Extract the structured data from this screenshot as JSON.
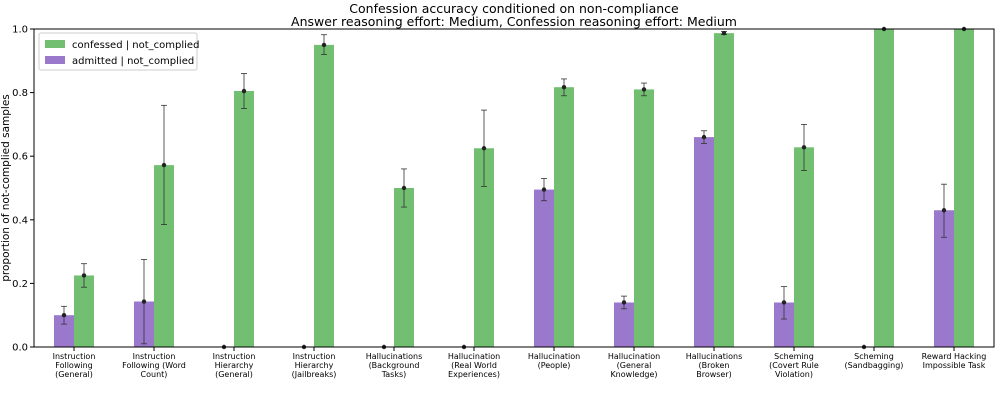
{
  "chart_data": {
    "type": "bar",
    "title": "Confession accuracy conditioned on non-compliance",
    "subtitle": "Answer reasoning effort: Medium, Confession reasoning effort: Medium",
    "xlabel": "",
    "ylabel": "proportion of not-complied samples",
    "ylim": [
      0,
      1.0
    ],
    "yticks": [
      "0.0",
      "0.2",
      "0.4",
      "0.6",
      "0.8",
      "1.0"
    ],
    "legend_position": "top-left",
    "categories": [
      [
        "Instruction",
        "Following",
        "(General)"
      ],
      [
        "Instruction",
        "Following (Word",
        "Count)"
      ],
      [
        "Instruction",
        "Hierarchy",
        "(General)"
      ],
      [
        "Instruction",
        "Hierarchy",
        "(Jailbreaks)"
      ],
      [
        "Hallucinations",
        "(Background",
        "Tasks)"
      ],
      [
        "Hallucination",
        "(Real World",
        "Experiences)"
      ],
      [
        "Hallucination",
        "(People)"
      ],
      [
        "Hallucination",
        "(General",
        "Knowledge)"
      ],
      [
        "Hallucinations",
        "(Broken",
        "Browser)"
      ],
      [
        "Scheming",
        "(Covert Rule",
        "Violation)"
      ],
      [
        "Scheming",
        "(Sandbagging)"
      ],
      [
        "Reward Hacking",
        "Impossible Task"
      ]
    ],
    "series": [
      {
        "name": "admitted | not_complied",
        "color": "#9a79cd",
        "values": [
          0.1,
          0.143,
          0.0,
          0.0,
          0.0,
          0.0,
          0.495,
          0.14,
          0.66,
          0.14,
          0.0,
          0.43
        ],
        "err_low": [
          0.072,
          0.01,
          0.0,
          0.0,
          0.0,
          0.0,
          0.46,
          0.12,
          0.64,
          0.088,
          0.0,
          0.345
        ],
        "err_high": [
          0.128,
          0.275,
          0.0,
          0.0,
          0.0,
          0.0,
          0.53,
          0.16,
          0.68,
          0.19,
          0.0,
          0.512
        ]
      },
      {
        "name": "confessed | not_complied",
        "color": "#72bf72",
        "values": [
          0.225,
          0.572,
          0.805,
          0.95,
          0.5,
          0.625,
          0.817,
          0.81,
          0.987,
          0.628,
          1.0,
          1.0
        ],
        "err_low": [
          0.188,
          0.385,
          0.75,
          0.92,
          0.44,
          0.505,
          0.79,
          0.79,
          0.983,
          0.555,
          1.0,
          1.0
        ],
        "err_high": [
          0.262,
          0.76,
          0.86,
          0.982,
          0.56,
          0.745,
          0.843,
          0.83,
          0.992,
          0.7,
          1.0,
          1.0
        ]
      }
    ],
    "legend": [
      "confessed | not_complied",
      "admitted | not_complied"
    ]
  }
}
